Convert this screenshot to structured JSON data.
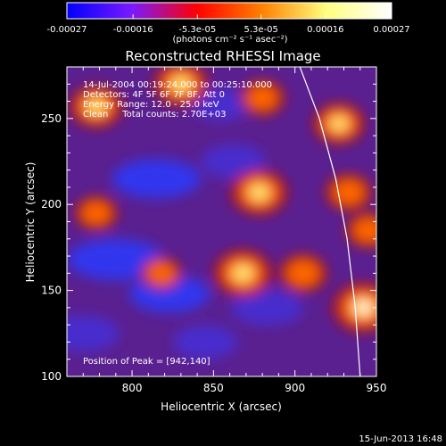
{
  "colorbar": {
    "tick_labels": [
      "-0.00027",
      "-0.00016",
      "-5.3e-05",
      "5.3e-05",
      "0.00016",
      "0.00027"
    ],
    "tick_values": [
      -0.00027,
      -0.00016,
      -5.3e-05,
      5.3e-05,
      0.00016,
      0.00027
    ],
    "range": [
      -0.00027,
      0.00027
    ],
    "units_label": "(photons cm⁻² s⁻¹ asec⁻²)",
    "colors": [
      "#0000ff",
      "#7a1aff",
      "#ff0000",
      "#ff8000",
      "#ffff80",
      "#ffffff"
    ]
  },
  "plot": {
    "title": "Reconstructed RHESSI Image",
    "xlabel": "Heliocentric X (arcsec)",
    "ylabel": "Heliocentric Y (arcsec)",
    "info_lines": [
      "14-Jul-2004 00:19:24.000 to 00:25:10.000",
      "Detectors: 4F 5F 6F 7F 8F, Att 0",
      "Energy Range: 12.0 - 25.0 keV",
      "Clean     Total counts: 2.70E+03"
    ],
    "peak_label": "Position of Peak = [942,140]",
    "xticks": [
      "800",
      "850",
      "900",
      "950"
    ],
    "yticks": [
      "100",
      "150",
      "200",
      "250"
    ]
  },
  "chart_data": {
    "type": "heatmap",
    "xlim": [
      760,
      950
    ],
    "ylim": [
      100,
      280
    ],
    "x_ticks": [
      800,
      850,
      900,
      950
    ],
    "y_ticks": [
      100,
      150,
      200,
      250
    ],
    "peak": [
      942,
      140
    ],
    "hot_spots": [
      {
        "x": 942,
        "y": 140,
        "level": 1.0
      },
      {
        "x": 868,
        "y": 160,
        "level": 0.9
      },
      {
        "x": 878,
        "y": 207,
        "level": 0.85
      },
      {
        "x": 830,
        "y": 270,
        "level": 0.8
      },
      {
        "x": 778,
        "y": 257,
        "level": 0.75
      },
      {
        "x": 927,
        "y": 247,
        "level": 0.7
      },
      {
        "x": 905,
        "y": 160,
        "level": 0.6
      },
      {
        "x": 933,
        "y": 207,
        "level": 0.55
      },
      {
        "x": 778,
        "y": 195,
        "level": 0.45
      },
      {
        "x": 818,
        "y": 160,
        "level": 0.4
      },
      {
        "x": 880,
        "y": 262,
        "level": 0.5
      },
      {
        "x": 945,
        "y": 185,
        "level": 0.5
      }
    ],
    "cold_spots": [
      {
        "x": 790,
        "y": 168,
        "level": -0.9
      },
      {
        "x": 815,
        "y": 215,
        "level": -0.8
      },
      {
        "x": 823,
        "y": 148,
        "level": -0.7
      },
      {
        "x": 845,
        "y": 120,
        "level": -0.5
      },
      {
        "x": 883,
        "y": 140,
        "level": -0.6
      },
      {
        "x": 862,
        "y": 225,
        "level": -0.5
      },
      {
        "x": 770,
        "y": 125,
        "level": -0.6
      },
      {
        "x": 855,
        "y": 258,
        "level": -0.4
      }
    ],
    "limb_curve": [
      [
        903,
        280
      ],
      [
        915,
        250
      ],
      [
        925,
        215
      ],
      [
        932,
        180
      ],
      [
        937,
        140
      ],
      [
        940,
        100
      ]
    ]
  },
  "footer": {
    "timestamp": "15-Jun-2013 16:48"
  }
}
